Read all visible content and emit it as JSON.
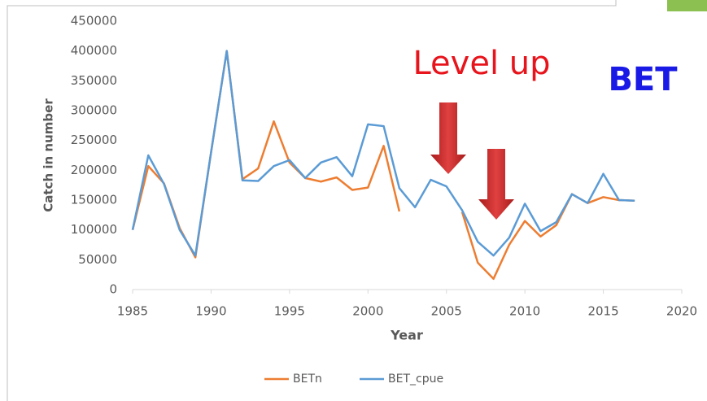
{
  "chart_data": {
    "type": "line",
    "x_label": "Year",
    "y_label": "Catch in number",
    "annotations": [
      {
        "text": "Level up",
        "color": "#e8141c"
      },
      {
        "text": "BET",
        "color": "#1a1ae6"
      }
    ],
    "x": [
      1985,
      1986,
      1987,
      1988,
      1989,
      1990,
      1991,
      1992,
      1993,
      1994,
      1995,
      1996,
      1997,
      1998,
      1999,
      2000,
      2001,
      2002,
      2003,
      2004,
      2005,
      2006,
      2007,
      2008,
      2009,
      2010,
      2011,
      2012,
      2013,
      2014,
      2015,
      2016,
      2017
    ],
    "series": [
      {
        "name": "BETn",
        "color": "#ed7d31",
        "values": [
          100000,
          207000,
          178000,
          103000,
          54000,
          230000,
          400000,
          185000,
          203000,
          282000,
          213000,
          187000,
          181000,
          188000,
          167000,
          171000,
          241000,
          131000,
          null,
          null,
          null,
          130000,
          45000,
          18000,
          75000,
          115000,
          89000,
          108000,
          160000,
          145000,
          155000,
          150000,
          149000
        ]
      },
      {
        "name": "BET_cpue",
        "color": "#5b9bd5",
        "values": [
          100000,
          225000,
          177000,
          100000,
          57000,
          230000,
          400000,
          183000,
          182000,
          207000,
          217000,
          187000,
          213000,
          222000,
          190000,
          277000,
          274000,
          170000,
          138000,
          184000,
          173000,
          133000,
          80000,
          57000,
          87000,
          144000,
          98000,
          113000,
          160000,
          145000,
          194000,
          150000,
          149000
        ]
      }
    ],
    "xlim": [
      1985,
      2020
    ],
    "xticks": [
      1985,
      1990,
      1995,
      2000,
      2005,
      2010,
      2015,
      2020
    ],
    "ylim": [
      0,
      450000
    ],
    "yticks": [
      0,
      50000,
      100000,
      150000,
      200000,
      250000,
      300000,
      350000,
      400000,
      450000
    ],
    "legend": "bottom"
  }
}
